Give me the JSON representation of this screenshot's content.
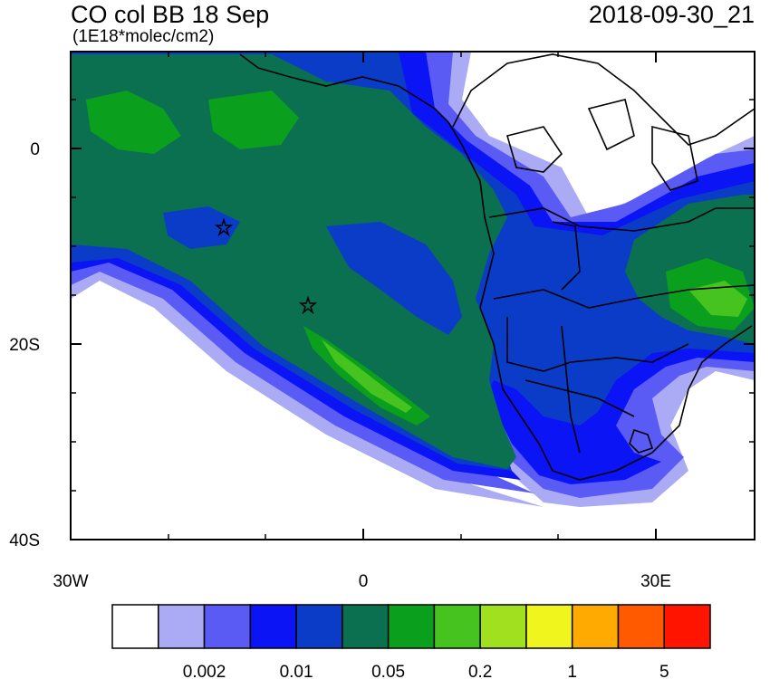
{
  "header": {
    "title": "CO col BB 18 Sep",
    "units": "(1E18*molec/cm2)",
    "timestamp": "2018-09-30_21"
  },
  "axes": {
    "x_ticks": [
      "30W",
      "0",
      "30E"
    ],
    "y_ticks": [
      "0",
      "20S",
      "40S"
    ],
    "lon_range": [
      "30W",
      "40E"
    ],
    "lat_range": [
      "10N",
      "40S"
    ]
  },
  "colorbar": {
    "colors": [
      "#ffffff",
      "#aaaaf5",
      "#5a5af5",
      "#0a14f5",
      "#0a3cc8",
      "#0a7050",
      "#0aa01e",
      "#46c31e",
      "#a0e01e",
      "#f0f51e",
      "#ffaa00",
      "#ff5a00",
      "#ff1400"
    ],
    "labels": [
      "0.002",
      "0.01",
      "0.05",
      "0.2",
      "1",
      "5"
    ]
  },
  "markers": [
    {
      "type": "star",
      "lon": "14W",
      "lat": "8S"
    },
    {
      "type": "star",
      "lon": "6W",
      "lat": "16S"
    }
  ]
}
